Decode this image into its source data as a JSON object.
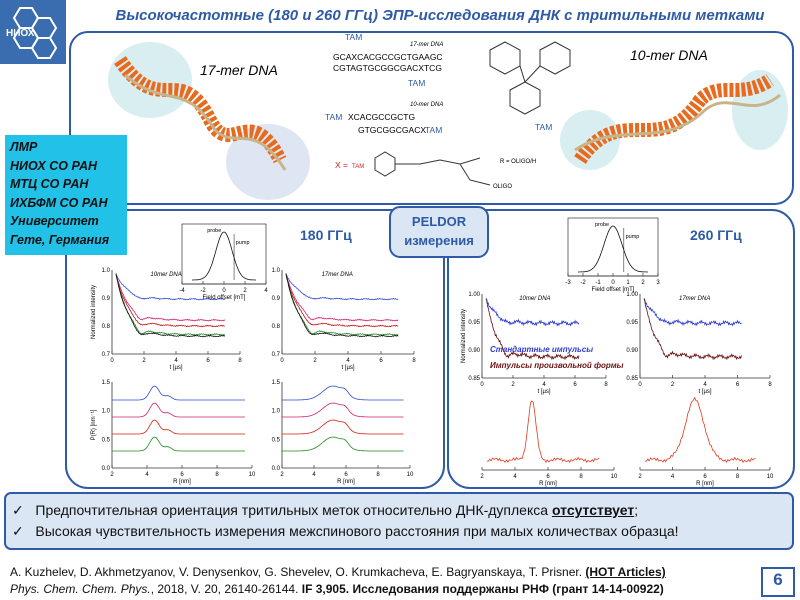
{
  "header": {
    "logo": "НИОХ",
    "title": "Высокочастотные (180 и 260 ГГц) ЭПР-исследования ДНК с тритильными метками"
  },
  "structure": {
    "label17": "17-mer DNA",
    "label10": "10-mer DNA",
    "tam": "TAM",
    "seq17a": "GCAXCACGCCGCTGAAGC",
    "seq17b": "CGTAGTGCGGCGACXTCG",
    "small17": "17-mer DNA",
    "small10": "10-mer DNA",
    "seq10a": "XCACGCCGCTG",
    "seq10b": "GTGCGGCGACX",
    "xeq": "X =",
    "r": "R = OLIGO/H",
    "oligo": "OLIGO"
  },
  "institutions": [
    "ЛМР",
    "НИОХ СО РАН",
    "МТЦ СО РАН",
    "ИХБФМ СО РАН",
    "Университет",
    "Гете, Германия"
  ],
  "peldor": [
    "PELDOR",
    "измерения"
  ],
  "left": {
    "title": "180 ГГц",
    "plots": [
      {
        "label": "10mer DNA",
        "ylabel": "Normalized intensity",
        "xlabel": "t [µs]",
        "xticks": [
          "0",
          "2",
          "4",
          "6",
          "8"
        ],
        "yticks": [
          "1.0",
          "0.9",
          "0.8",
          "0.7"
        ]
      },
      {
        "label": "17mer DNA",
        "xlabel": "t [µs]",
        "xticks": [
          "0",
          "2",
          "4",
          "6",
          "8"
        ],
        "yticks": [
          "1.0",
          "0.9",
          "0.8",
          "0.7"
        ]
      },
      {
        "ylabel": "P(R) [nm⁻¹]",
        "xlabel": "R [nm]",
        "xticks": [
          "2",
          "4",
          "6",
          "8",
          "10"
        ],
        "yticks": [
          "1.5",
          "1.0",
          "0.5",
          "0.0"
        ]
      },
      {
        "xlabel": "R [nm]",
        "xticks": [
          "2",
          "4",
          "6",
          "8",
          "10"
        ],
        "yticks": [
          "1.5",
          "1.0",
          "0.5",
          "0.0"
        ]
      },
      {
        "probe": "probe",
        "pump": "pump",
        "xlabel": "Field offset [mT]",
        "xticks": [
          "-4",
          "-2",
          "0",
          "2",
          "4"
        ],
        "yticks": []
      }
    ]
  },
  "right": {
    "title": "260 ГГц",
    "legend1": "Стандартные импульсы",
    "legend2": "Импульсы произвольной формы",
    "plots": [
      {
        "label": "10mer DNA",
        "ylabel": "Normalized intensity",
        "xlabel": "t [µs]",
        "xticks": [
          "0",
          "2",
          "4",
          "6",
          "8"
        ],
        "yticks": [
          "1.00",
          "0.95",
          "0.90",
          "0.85"
        ]
      },
      {
        "label": "17mer DNA",
        "xlabel": "t [µs]",
        "xticks": [
          "0",
          "2",
          "4",
          "6",
          "8"
        ],
        "yticks": [
          "1.00",
          "0.95",
          "0.90",
          "0.85"
        ]
      },
      {
        "xlabel": "R [nm]",
        "xticks": [
          "2",
          "4",
          "6",
          "8",
          "10"
        ],
        "yticks": []
      },
      {
        "xlabel": "R [nm]",
        "xticks": [
          "2",
          "4",
          "6",
          "8",
          "10"
        ],
        "yticks": []
      },
      {
        "probe": "probe",
        "pump": "pump",
        "xlabel": "Field offset [mT]",
        "xticks": [
          "-3",
          "-2",
          "-1",
          "0",
          "1",
          "2",
          "3"
        ],
        "yticks": []
      }
    ]
  },
  "bullets": [
    [
      "Предпочтительная ориентация тритильных меток относительно ДНК-дуплекса ",
      "отсутствует",
      ";"
    ],
    [
      "Высокая чувствительность измерения межспинового расстояния при малых количествах образца!"
    ]
  ],
  "footer": {
    "authors": "A. Kuzhelev, D. Akhmetzyanov, V. Denysenkov, G. Shevelev, O. Krumkacheva, E. Bagryanskaya, T. Prisner.",
    "tag": "(HOT Articles)",
    "journal": "Phys. Chem. Chem. Phys.",
    "rest": ", 2018, V. 20, 26140-26144.",
    "if": "IF 3,905.",
    "grant": "Исследования поддержаны РНФ (грант 14-14-00922)",
    "page": "6"
  }
}
